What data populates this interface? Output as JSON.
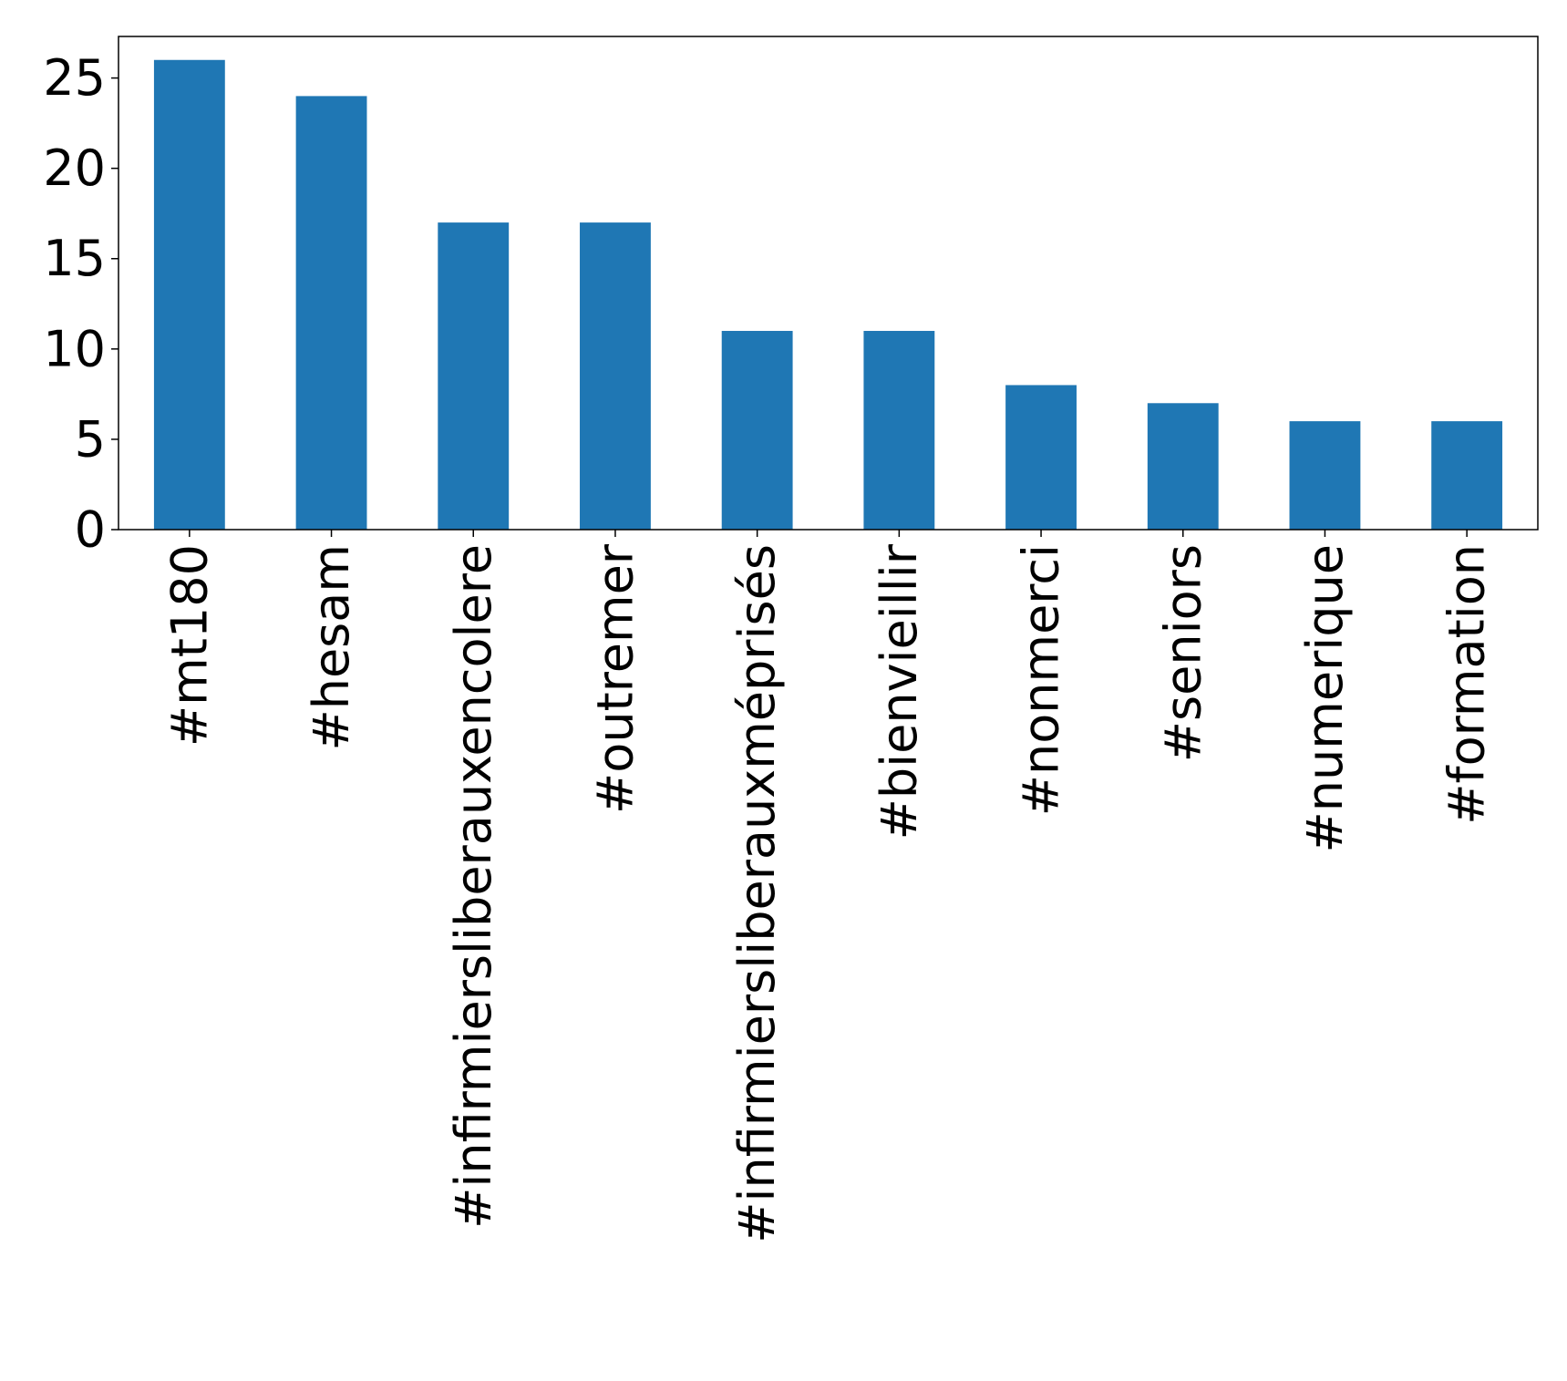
{
  "chart_data": {
    "type": "bar",
    "categories": [
      "#mt180",
      "#hesam",
      "#infirmiersliberauxencolere",
      "#outremer",
      "#infirmiersliberauxméprisés",
      "#bienvieillir",
      "#nonmerci",
      "#seniors",
      "#numerique",
      "#formation"
    ],
    "values": [
      26,
      24,
      17,
      17,
      11,
      11,
      8,
      7,
      6,
      6
    ],
    "ylim": [
      0,
      27.3
    ],
    "yticks": [
      0,
      5,
      10,
      15,
      20,
      25
    ],
    "grid": false,
    "legend": "none",
    "colors": {
      "bar": "#1f77b4",
      "axis": "#000000"
    }
  }
}
